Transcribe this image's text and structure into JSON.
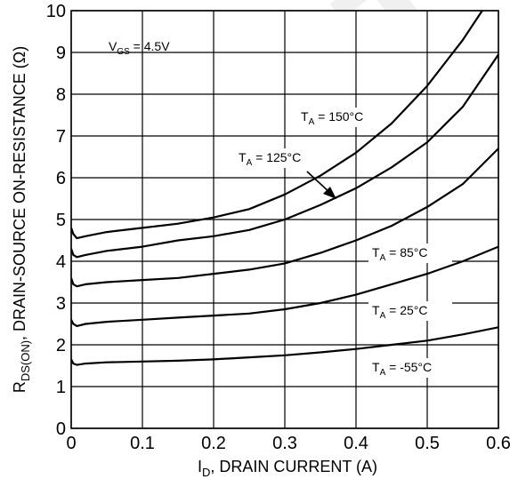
{
  "chart_data": {
    "type": "line",
    "x_ticks": [
      "0",
      "0.1",
      "0.2",
      "0.3",
      "0.4",
      "0.5",
      "0.6"
    ],
    "y_ticks": [
      "0",
      "1",
      "2",
      "3",
      "4",
      "5",
      "6",
      "7",
      "8",
      "9",
      "10"
    ],
    "xlim": [
      0,
      0.6
    ],
    "ylim": [
      0,
      10
    ],
    "grid": true,
    "xlabel": {
      "main": "I",
      "sub": "D",
      "rest": ", DRAIN CURRENT (A)"
    },
    "ylabel": {
      "main": "R",
      "sub": "DS(ON)",
      "rest": ", DRAIN-SOURCE ON-RESISTANCE (Ω)"
    },
    "annotations": {
      "vgs": {
        "main": "V",
        "sub": "GS",
        "rest": " = 4.5V"
      }
    },
    "series": [
      {
        "name": {
          "main": "T",
          "sub": "A",
          "rest": " = 150°C"
        },
        "x": [
          0,
          0.003,
          0.008,
          0.02,
          0.05,
          0.1,
          0.15,
          0.2,
          0.25,
          0.3,
          0.35,
          0.4,
          0.45,
          0.5,
          0.55,
          0.585
        ],
        "y": [
          4.8,
          4.65,
          4.55,
          4.6,
          4.7,
          4.8,
          4.9,
          5.05,
          5.25,
          5.6,
          6.05,
          6.6,
          7.3,
          8.2,
          9.3,
          10.2
        ]
      },
      {
        "name": {
          "main": "T",
          "sub": "A",
          "rest": " = 125°C"
        },
        "x": [
          0,
          0.003,
          0.008,
          0.02,
          0.05,
          0.1,
          0.15,
          0.2,
          0.25,
          0.3,
          0.35,
          0.4,
          0.45,
          0.5,
          0.55,
          0.6
        ],
        "y": [
          4.3,
          4.15,
          4.1,
          4.15,
          4.25,
          4.35,
          4.5,
          4.6,
          4.75,
          5.0,
          5.35,
          5.75,
          6.25,
          6.85,
          7.7,
          8.95
        ]
      },
      {
        "name": {
          "main": "T",
          "sub": "A",
          "rest": " = 85°C"
        },
        "x": [
          0,
          0.003,
          0.008,
          0.02,
          0.05,
          0.1,
          0.15,
          0.2,
          0.25,
          0.3,
          0.35,
          0.4,
          0.45,
          0.5,
          0.55,
          0.6
        ],
        "y": [
          3.6,
          3.45,
          3.4,
          3.45,
          3.5,
          3.55,
          3.6,
          3.7,
          3.8,
          3.95,
          4.2,
          4.5,
          4.85,
          5.3,
          5.85,
          6.7
        ]
      },
      {
        "name": {
          "main": "T",
          "sub": "A",
          "rest": " = 25°C"
        },
        "x": [
          0,
          0.003,
          0.008,
          0.02,
          0.05,
          0.1,
          0.15,
          0.2,
          0.25,
          0.3,
          0.35,
          0.4,
          0.45,
          0.5,
          0.55,
          0.6
        ],
        "y": [
          2.6,
          2.5,
          2.45,
          2.5,
          2.55,
          2.6,
          2.65,
          2.7,
          2.75,
          2.85,
          3.0,
          3.2,
          3.45,
          3.7,
          4.0,
          4.35
        ]
      },
      {
        "name": {
          "main": "T",
          "sub": "A",
          "rest": " = -55°C"
        },
        "x": [
          0,
          0.003,
          0.008,
          0.02,
          0.05,
          0.1,
          0.15,
          0.2,
          0.25,
          0.3,
          0.35,
          0.4,
          0.45,
          0.5,
          0.55,
          0.6
        ],
        "y": [
          1.65,
          1.55,
          1.52,
          1.55,
          1.58,
          1.6,
          1.62,
          1.65,
          1.7,
          1.75,
          1.82,
          1.9,
          2.0,
          2.1,
          2.25,
          2.42
        ]
      }
    ]
  },
  "watermark": "NOT FOR"
}
